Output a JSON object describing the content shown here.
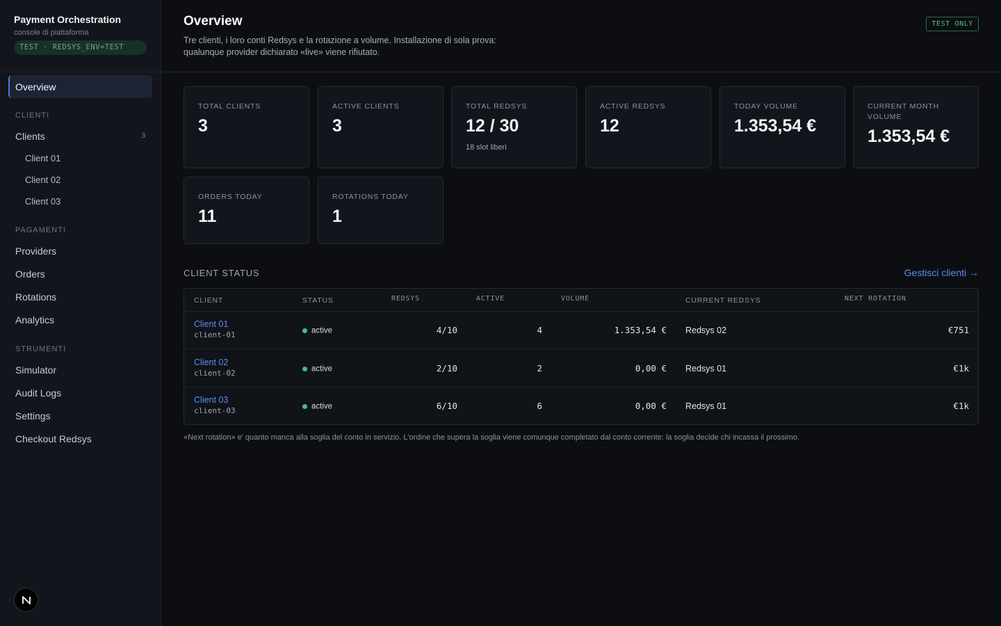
{
  "sidebar": {
    "brand_title": "Payment Orchestration",
    "brand_subtitle": "console di piattaforma",
    "env_badge": "TEST · REDSYS_ENV=TEST",
    "overview_label": "Overview",
    "section_clienti": "CLIENTI",
    "clients_label": "Clients",
    "clients_count": "3",
    "client_items": [
      "Client 01",
      "Client 02",
      "Client 03"
    ],
    "section_pagamenti": "PAGAMENTI",
    "pagamenti_items": [
      "Providers",
      "Orders",
      "Rotations",
      "Analytics"
    ],
    "section_strumenti": "STRUMENTI",
    "strumenti_items": [
      "Simulator",
      "Audit Logs",
      "Settings",
      "Checkout Redsys"
    ],
    "logo_letter": "N"
  },
  "header": {
    "title": "Overview",
    "description": "Tre clienti, i loro conti Redsys e la rotazione a volume. Installazione di sola prova: qualunque provider dichiarato «live» viene rifiutato.",
    "test_badge": "TEST ONLY"
  },
  "stats": [
    {
      "label": "TOTAL CLIENTS",
      "value": "3",
      "sub": ""
    },
    {
      "label": "ACTIVE CLIENTS",
      "value": "3",
      "sub": ""
    },
    {
      "label": "TOTAL REDSYS",
      "value": "12 / 30",
      "sub": "18 slot liberi"
    },
    {
      "label": "ACTIVE REDSYS",
      "value": "12",
      "sub": ""
    },
    {
      "label": "TODAY VOLUME",
      "value": "1.353,54 €",
      "sub": ""
    },
    {
      "label": "CURRENT MONTH VOLUME",
      "value": "1.353,54 €",
      "sub": ""
    },
    {
      "label": "ORDERS TODAY",
      "value": "11",
      "sub": ""
    },
    {
      "label": "ROTATIONS TODAY",
      "value": "1",
      "sub": ""
    }
  ],
  "client_status": {
    "title": "CLIENT STATUS",
    "manage_link": "Gestisci clienti →",
    "columns": [
      "CLIENT",
      "STATUS",
      "REDSYS",
      "ACTIVE",
      "VOLUME",
      "CURRENT REDSYS",
      "NEXT ROTATION"
    ],
    "rows": [
      {
        "name": "Client 01",
        "slug": "client-01",
        "status": "active",
        "redsys": "4/10",
        "active": "4",
        "volume": "1.353,54 €",
        "current": "Redsys 02",
        "next": "€751"
      },
      {
        "name": "Client 02",
        "slug": "client-02",
        "status": "active",
        "redsys": "2/10",
        "active": "2",
        "volume": "0,00 €",
        "current": "Redsys 01",
        "next": "€1k"
      },
      {
        "name": "Client 03",
        "slug": "client-03",
        "status": "active",
        "redsys": "6/10",
        "active": "6",
        "volume": "0,00 €",
        "current": "Redsys 01",
        "next": "€1k"
      }
    ],
    "status_color": "#3ec479",
    "footnote": "«Next rotation» e' quanto manca alla soglia del conto in servizio. L'ordine che supera la soglia viene comunque completato dal conto corrente: la soglia decide chi incassa il prossimo."
  },
  "colors": {
    "accent": "#5b8ef0",
    "active_nav": "#1c2434",
    "test_green": "#4cc38a"
  }
}
